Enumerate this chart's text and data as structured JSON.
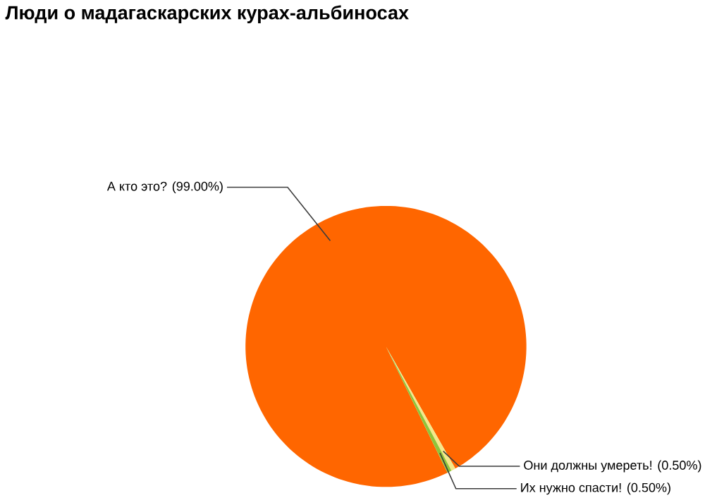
{
  "chart_data": {
    "type": "pie",
    "title": "Люди о мадагаскарских курах-альбиносах",
    "categories": [
      "А кто это?",
      "Они должны умереть!",
      "Их нужно спасти!"
    ],
    "values": [
      99,
      0.5,
      0.5
    ],
    "value_labels": [
      "(99.00%)",
      "(0.50%)",
      "(0.50%)"
    ],
    "colors": [
      "#ff6600",
      "#f4e88a",
      "#8fc43a"
    ]
  }
}
